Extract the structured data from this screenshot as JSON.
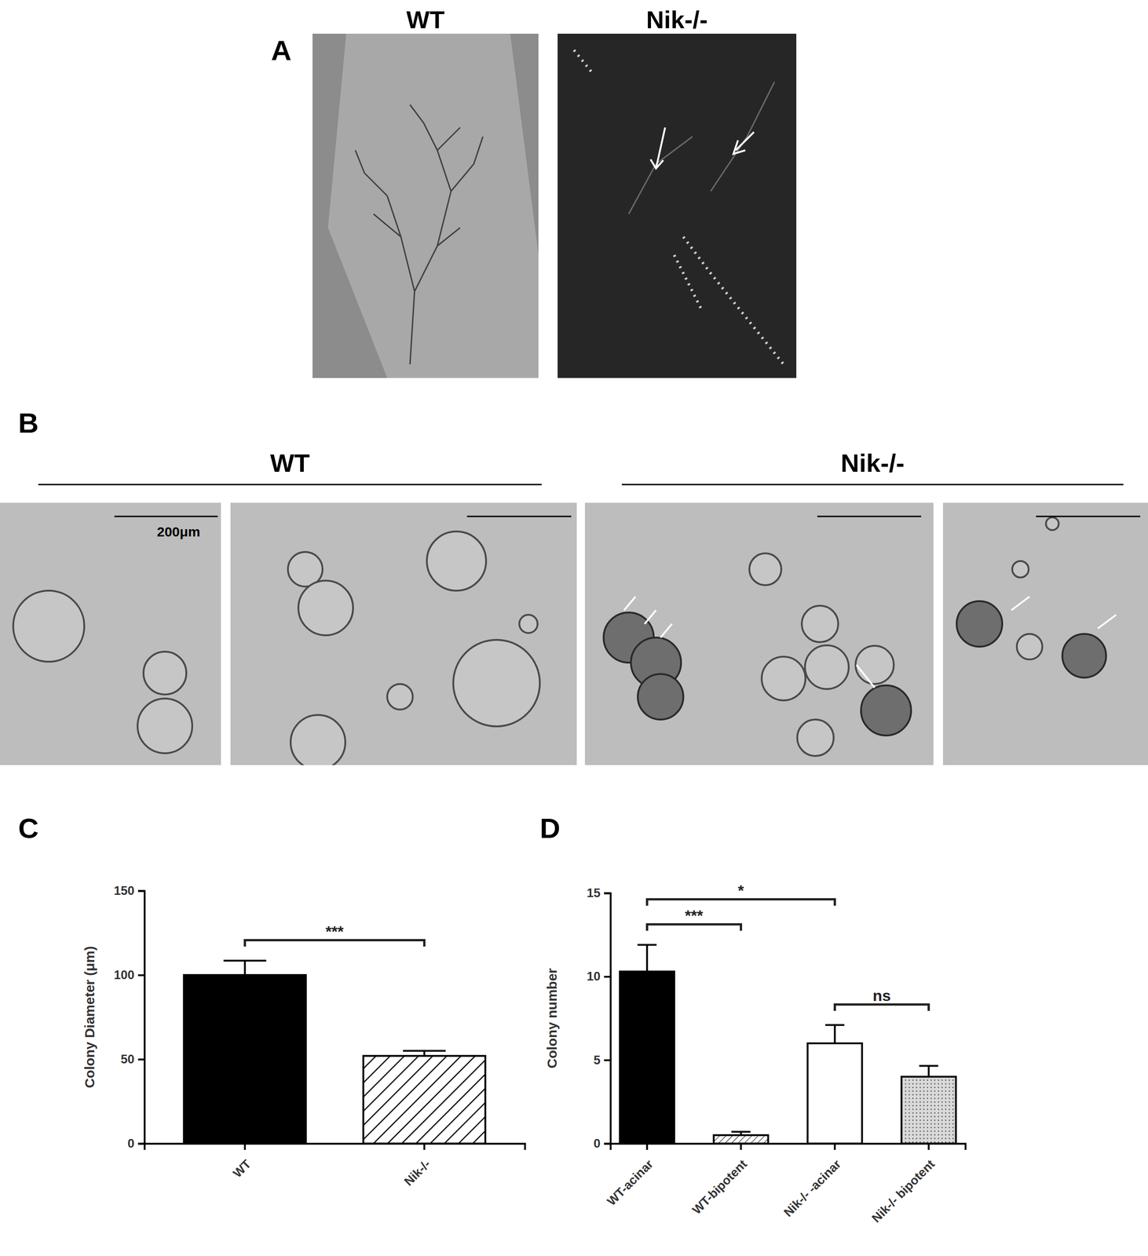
{
  "panels": [
    {
      "label": "A",
      "headings": [
        "WT",
        "Nik-/-"
      ]
    },
    {
      "label": "B",
      "headings": [
        "WT",
        "Nik-/-"
      ],
      "scale_bar": "200μm"
    }
  ],
  "chart_data": [
    {
      "type": "bar",
      "title": "C",
      "categories": [
        "WT",
        "Nik-/-"
      ],
      "values": [
        100,
        52
      ],
      "errors": [
        8.5,
        3
      ],
      "colors": [
        "#000000",
        "#ffffff"
      ],
      "ylabel": "Colony Diameter (μm)",
      "ylim": [
        0,
        150
      ],
      "yticks": [
        0,
        50,
        100,
        150
      ],
      "annotations": [
        {
          "text": "***",
          "categories": [
            0,
            1
          ]
        }
      ]
    },
    {
      "type": "bar",
      "title": "D",
      "categories": [
        "WT-acinar",
        "WT-bipotent",
        "Nik-/- -acinar",
        "Nik-/- bipotent"
      ],
      "values": [
        10.3,
        0.5,
        6.0,
        4.0
      ],
      "errors": [
        1.6,
        0.2,
        1.1,
        0.65
      ],
      "colors": [
        "#000000",
        "#ffffff",
        "#ffffff",
        "#d9d9d9"
      ],
      "ylabel": "Colony number",
      "ylim": [
        0,
        15
      ],
      "yticks": [
        0,
        5,
        10,
        15
      ],
      "annotations": [
        {
          "text": "***",
          "categories": [
            0,
            1
          ]
        },
        {
          "text": "*",
          "categories": [
            0,
            2
          ]
        },
        {
          "text": "ns",
          "categories": [
            2,
            3
          ]
        }
      ]
    }
  ]
}
